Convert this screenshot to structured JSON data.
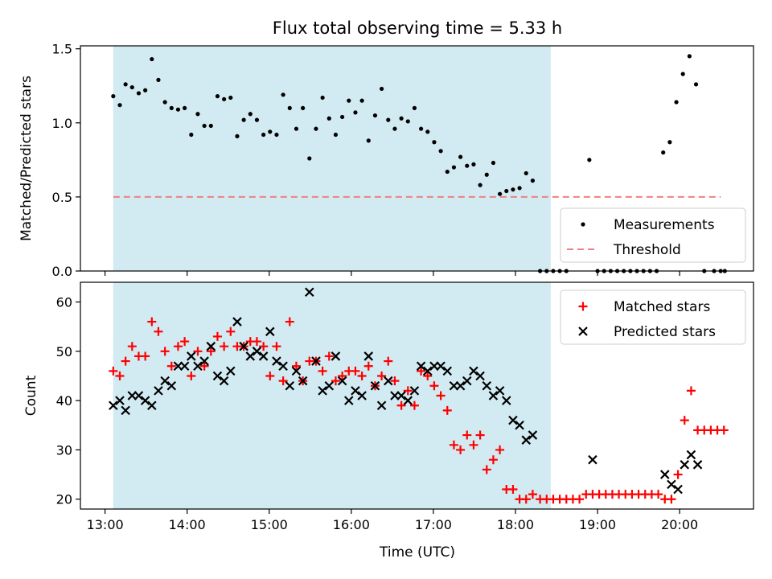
{
  "figure": {
    "title": "Flux total observing time = 5.33 h",
    "xlabel": "Time (UTC)",
    "xticks": [
      {
        "t": 13,
        "label": "13:00"
      },
      {
        "t": 14,
        "label": "14:00"
      },
      {
        "t": 15,
        "label": "15:00"
      },
      {
        "t": 16,
        "label": "16:00"
      },
      {
        "t": 17,
        "label": "17:00"
      },
      {
        "t": 18,
        "label": "18:00"
      },
      {
        "t": 19,
        "label": "19:00"
      },
      {
        "t": 20,
        "label": "20:00"
      }
    ],
    "xlim": [
      12.7,
      20.9
    ],
    "observing_window": [
      13.1,
      18.43
    ],
    "colors": {
      "window": "#add8e6",
      "measure": "#000000",
      "threshold": "#f08080",
      "matched": "#ff0000",
      "predicted": "#000000"
    }
  },
  "chart_data": [
    {
      "type": "scatter",
      "ylabel": "Matched/Predicted stars",
      "ylim": [
        0,
        1.52
      ],
      "yticks": [
        "0.0",
        "0.5",
        "1.0",
        "1.5"
      ],
      "legend": {
        "position": "lower-right",
        "entries": [
          "Measurements",
          "Threshold"
        ]
      },
      "threshold": 0.5,
      "threshold_range": [
        13.1,
        20.5
      ],
      "series": [
        {
          "name": "Measurements",
          "points": [
            [
              13.1,
              1.18
            ],
            [
              13.18,
              1.12
            ],
            [
              13.25,
              1.26
            ],
            [
              13.33,
              1.24
            ],
            [
              13.41,
              1.2
            ],
            [
              13.49,
              1.22
            ],
            [
              13.57,
              1.43
            ],
            [
              13.65,
              1.29
            ],
            [
              13.73,
              1.14
            ],
            [
              13.81,
              1.1
            ],
            [
              13.89,
              1.09
            ],
            [
              13.97,
              1.1
            ],
            [
              14.05,
              0.92
            ],
            [
              14.13,
              1.06
            ],
            [
              14.21,
              0.98
            ],
            [
              14.29,
              0.98
            ],
            [
              14.37,
              1.18
            ],
            [
              14.45,
              1.16
            ],
            [
              14.53,
              1.17
            ],
            [
              14.61,
              0.91
            ],
            [
              14.69,
              1.02
            ],
            [
              14.77,
              1.06
            ],
            [
              14.85,
              1.02
            ],
            [
              14.93,
              0.92
            ],
            [
              15.01,
              0.94
            ],
            [
              15.09,
              0.92
            ],
            [
              15.17,
              1.19
            ],
            [
              15.25,
              1.1
            ],
            [
              15.33,
              0.96
            ],
            [
              15.41,
              1.1
            ],
            [
              15.49,
              0.76
            ],
            [
              15.57,
              0.96
            ],
            [
              15.65,
              1.17
            ],
            [
              15.73,
              1.03
            ],
            [
              15.81,
              0.92
            ],
            [
              15.89,
              1.04
            ],
            [
              15.97,
              1.15
            ],
            [
              16.05,
              1.07
            ],
            [
              16.13,
              1.15
            ],
            [
              16.21,
              0.88
            ],
            [
              16.29,
              1.05
            ],
            [
              16.37,
              1.23
            ],
            [
              16.45,
              1.02
            ],
            [
              16.53,
              0.96
            ],
            [
              16.61,
              1.03
            ],
            [
              16.69,
              1.01
            ],
            [
              16.77,
              1.1
            ],
            [
              16.85,
              0.96
            ],
            [
              16.93,
              0.94
            ],
            [
              17.01,
              0.87
            ],
            [
              17.09,
              0.81
            ],
            [
              17.17,
              0.67
            ],
            [
              17.25,
              0.7
            ],
            [
              17.33,
              0.77
            ],
            [
              17.41,
              0.71
            ],
            [
              17.49,
              0.72
            ],
            [
              17.57,
              0.58
            ],
            [
              17.65,
              0.65
            ],
            [
              17.73,
              0.73
            ],
            [
              17.81,
              0.52
            ],
            [
              17.89,
              0.54
            ],
            [
              17.97,
              0.55
            ],
            [
              18.05,
              0.56
            ],
            [
              18.13,
              0.66
            ],
            [
              18.21,
              0.61
            ],
            [
              18.3,
              0
            ],
            [
              18.38,
              0
            ],
            [
              18.46,
              0
            ],
            [
              18.54,
              0
            ],
            [
              18.62,
              0
            ],
            [
              18.9,
              0.75
            ],
            [
              19.0,
              0
            ],
            [
              19.08,
              0
            ],
            [
              19.16,
              0
            ],
            [
              19.24,
              0
            ],
            [
              19.32,
              0
            ],
            [
              19.4,
              0
            ],
            [
              19.48,
              0
            ],
            [
              19.56,
              0
            ],
            [
              19.64,
              0
            ],
            [
              19.72,
              0
            ],
            [
              19.8,
              0.8
            ],
            [
              19.88,
              0.87
            ],
            [
              19.96,
              1.14
            ],
            [
              20.04,
              1.33
            ],
            [
              20.12,
              1.45
            ],
            [
              20.2,
              1.26
            ],
            [
              20.3,
              0
            ],
            [
              20.42,
              0
            ],
            [
              20.5,
              0
            ],
            [
              20.55,
              0
            ]
          ]
        }
      ]
    },
    {
      "type": "scatter",
      "ylabel": "Count",
      "ylim": [
        18,
        64
      ],
      "yticks": [
        "20",
        "30",
        "40",
        "50",
        "60"
      ],
      "legend": {
        "position": "top-right",
        "entries": [
          "Matched stars",
          "Predicted stars"
        ]
      },
      "series": [
        {
          "name": "Matched stars",
          "points": [
            [
              13.1,
              46
            ],
            [
              13.18,
              45
            ],
            [
              13.25,
              48
            ],
            [
              13.33,
              51
            ],
            [
              13.41,
              49
            ],
            [
              13.49,
              49
            ],
            [
              13.57,
              56
            ],
            [
              13.65,
              54
            ],
            [
              13.73,
              50
            ],
            [
              13.81,
              47
            ],
            [
              13.89,
              51
            ],
            [
              13.97,
              52
            ],
            [
              14.05,
              45
            ],
            [
              14.13,
              50
            ],
            [
              14.21,
              47
            ],
            [
              14.29,
              50
            ],
            [
              14.37,
              53
            ],
            [
              14.45,
              51
            ],
            [
              14.53,
              54
            ],
            [
              14.61,
              51
            ],
            [
              14.69,
              51
            ],
            [
              14.77,
              52
            ],
            [
              14.85,
              52
            ],
            [
              14.93,
              51
            ],
            [
              15.01,
              45
            ],
            [
              15.09,
              51
            ],
            [
              15.17,
              44
            ],
            [
              15.25,
              56
            ],
            [
              15.33,
              47
            ],
            [
              15.41,
              44
            ],
            [
              15.49,
              48
            ],
            [
              15.57,
              48
            ],
            [
              15.65,
              46
            ],
            [
              15.73,
              49
            ],
            [
              15.81,
              44
            ],
            [
              15.89,
              45
            ],
            [
              15.97,
              46
            ],
            [
              16.05,
              46
            ],
            [
              16.13,
              45
            ],
            [
              16.21,
              47
            ],
            [
              16.29,
              43
            ],
            [
              16.37,
              45
            ],
            [
              16.45,
              48
            ],
            [
              16.53,
              44
            ],
            [
              16.61,
              39
            ],
            [
              16.69,
              42
            ],
            [
              16.77,
              39
            ],
            [
              16.85,
              46
            ],
            [
              16.93,
              45
            ],
            [
              17.01,
              43
            ],
            [
              17.09,
              41
            ],
            [
              17.17,
              38
            ],
            [
              17.25,
              31
            ],
            [
              17.33,
              30
            ],
            [
              17.41,
              33
            ],
            [
              17.49,
              31
            ],
            [
              17.57,
              33
            ],
            [
              17.65,
              26
            ],
            [
              17.73,
              28
            ],
            [
              17.81,
              30
            ],
            [
              17.89,
              22
            ],
            [
              17.97,
              22
            ],
            [
              18.05,
              20
            ],
            [
              18.13,
              20
            ],
            [
              18.21,
              21
            ],
            [
              18.3,
              20
            ],
            [
              18.38,
              20
            ],
            [
              18.46,
              20
            ],
            [
              18.54,
              20
            ],
            [
              18.62,
              20
            ],
            [
              18.7,
              20
            ],
            [
              18.78,
              20
            ],
            [
              18.86,
              21
            ],
            [
              18.94,
              21
            ],
            [
              19.02,
              21
            ],
            [
              19.1,
              21
            ],
            [
              19.18,
              21
            ],
            [
              19.26,
              21
            ],
            [
              19.34,
              21
            ],
            [
              19.42,
              21
            ],
            [
              19.5,
              21
            ],
            [
              19.58,
              21
            ],
            [
              19.66,
              21
            ],
            [
              19.74,
              21
            ],
            [
              19.82,
              20
            ],
            [
              19.9,
              20
            ],
            [
              19.98,
              25
            ],
            [
              20.06,
              36
            ],
            [
              20.14,
              42
            ],
            [
              20.22,
              34
            ],
            [
              20.3,
              34
            ],
            [
              20.38,
              34
            ],
            [
              20.46,
              34
            ],
            [
              20.54,
              34
            ]
          ]
        },
        {
          "name": "Predicted stars",
          "points": [
            [
              13.1,
              39
            ],
            [
              13.18,
              40
            ],
            [
              13.25,
              38
            ],
            [
              13.33,
              41
            ],
            [
              13.41,
              41
            ],
            [
              13.49,
              40
            ],
            [
              13.57,
              39
            ],
            [
              13.65,
              42
            ],
            [
              13.73,
              44
            ],
            [
              13.81,
              43
            ],
            [
              13.89,
              47
            ],
            [
              13.97,
              47
            ],
            [
              14.05,
              49
            ],
            [
              14.13,
              47
            ],
            [
              14.21,
              48
            ],
            [
              14.29,
              51
            ],
            [
              14.37,
              45
            ],
            [
              14.45,
              44
            ],
            [
              14.53,
              46
            ],
            [
              14.61,
              56
            ],
            [
              14.69,
              51
            ],
            [
              14.77,
              49
            ],
            [
              14.85,
              50
            ],
            [
              14.93,
              49
            ],
            [
              15.01,
              54
            ],
            [
              15.09,
              48
            ],
            [
              15.17,
              47
            ],
            [
              15.25,
              43
            ],
            [
              15.33,
              46
            ],
            [
              15.41,
              44
            ],
            [
              15.49,
              62
            ],
            [
              15.57,
              48
            ],
            [
              15.65,
              42
            ],
            [
              15.73,
              43
            ],
            [
              15.81,
              49
            ],
            [
              15.89,
              44
            ],
            [
              15.97,
              40
            ],
            [
              16.05,
              42
            ],
            [
              16.13,
              41
            ],
            [
              16.21,
              49
            ],
            [
              16.29,
              43
            ],
            [
              16.37,
              39
            ],
            [
              16.45,
              44
            ],
            [
              16.53,
              41
            ],
            [
              16.61,
              41
            ],
            [
              16.69,
              40
            ],
            [
              16.77,
              42
            ],
            [
              16.85,
              47
            ],
            [
              16.93,
              46
            ],
            [
              17.01,
              47
            ],
            [
              17.09,
              47
            ],
            [
              17.17,
              46
            ],
            [
              17.25,
              43
            ],
            [
              17.33,
              43
            ],
            [
              17.41,
              44
            ],
            [
              17.49,
              46
            ],
            [
              17.57,
              45
            ],
            [
              17.65,
              43
            ],
            [
              17.73,
              41
            ],
            [
              17.81,
              42
            ],
            [
              17.89,
              40
            ],
            [
              17.97,
              36
            ],
            [
              18.05,
              35
            ],
            [
              18.13,
              32
            ],
            [
              18.21,
              33
            ],
            [
              18.94,
              28
            ],
            [
              19.82,
              25
            ],
            [
              19.9,
              23
            ],
            [
              19.98,
              22
            ],
            [
              20.06,
              27
            ],
            [
              20.14,
              29
            ],
            [
              20.22,
              27
            ]
          ]
        }
      ]
    }
  ]
}
